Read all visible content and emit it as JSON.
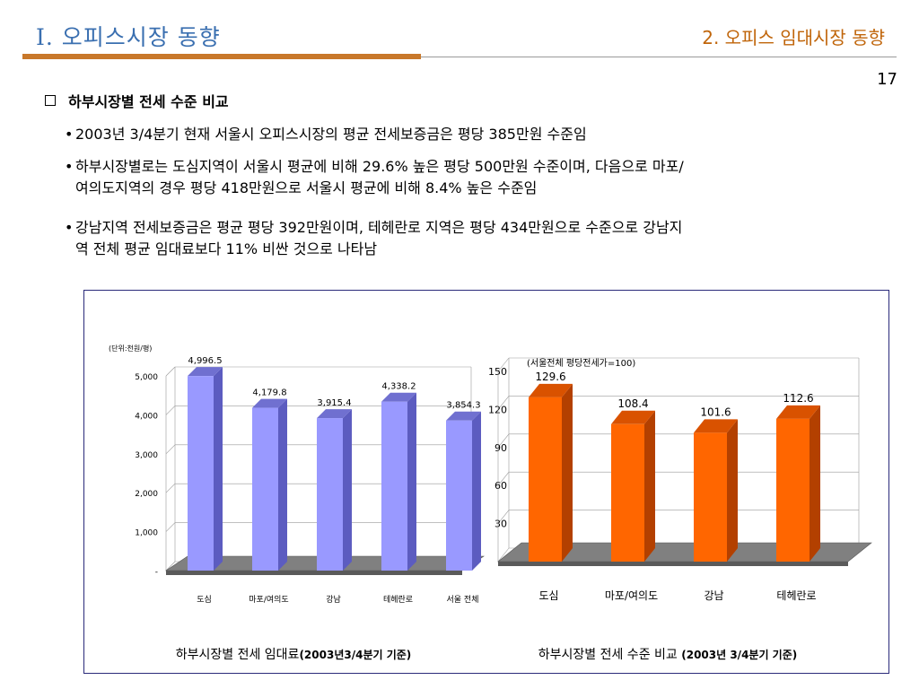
{
  "header": {
    "section_left": "Ⅰ. 오피스시장 동향",
    "section_right": "2. 오피스 임대시장 동향",
    "page_number": "17"
  },
  "content": {
    "title": "하부시장별 전세 수준 비교",
    "bullets": [
      {
        "line1": "2003년 3/4분기 현재 서울시 오피스시장의 평균 전세보증금은 평당 385만원 수준임"
      },
      {
        "line1": "하부시장별로는 도심지역이 서울시 평균에 비해 29.6% 높은 평당 500만원 수준이며, 다음으로 마포/",
        "line2": "여의도지역의 경우 평당 418만원으로 서울시 평균에 비해 8.4% 높은 수준임"
      },
      {
        "line1": "강남지역 전세보증금은 평균 평당 392만원이며, 테헤란로 지역은 평당 434만원으로 수준으로 강남지",
        "line2": "역 전체 평균 임대료보다 11% 비싼 것으로 나타남"
      }
    ]
  },
  "chart_data": [
    {
      "type": "bar",
      "title": "하부시장별 전세 임대료(2003년3/4분기 기준)",
      "unit_label": "(단위:천원/평)",
      "categories": [
        "도심",
        "마포/여의도",
        "강남",
        "테헤란로",
        "서울 전체"
      ],
      "values": [
        4996.5,
        4179.8,
        3915.4,
        4338.2,
        3854.3
      ],
      "value_labels": [
        "4,996.5",
        "4,179.8",
        "3,915.4",
        "4,338.2",
        "3,854.3"
      ],
      "ylim": [
        0,
        5000
      ],
      "yticks": [
        0,
        1000,
        2000,
        3000,
        4000,
        5000
      ],
      "ytick_labels": [
        "-",
        "1,000",
        "2,000",
        "3,000",
        "4,000",
        "5,000"
      ],
      "bar_color": "#9999ff",
      "bar_side_color": "#5c5cc0",
      "bar_top_color": "#7070d0",
      "floor_color": "#808080"
    },
    {
      "type": "bar",
      "title": "하부시장별 전세 수준 비교 (2003년 3/4분기 기준)",
      "unit_label": "(서울전체 평당전세가=100)",
      "categories": [
        "도심",
        "마포/여의도",
        "강남",
        "테헤란로"
      ],
      "values": [
        129.6,
        108.4,
        101.6,
        112.6
      ],
      "value_labels": [
        "129.6",
        "108.4",
        "101.6",
        "112.6"
      ],
      "ylim": [
        0,
        150
      ],
      "yticks": [
        0,
        30,
        60,
        90,
        120,
        150
      ],
      "ytick_labels": [
        "-",
        "30",
        "60",
        "90",
        "120",
        "150"
      ],
      "bar_color": "#ff6600",
      "bar_side_color": "#b34000",
      "bar_top_color": "#d95200",
      "floor_color": "#808080"
    }
  ]
}
